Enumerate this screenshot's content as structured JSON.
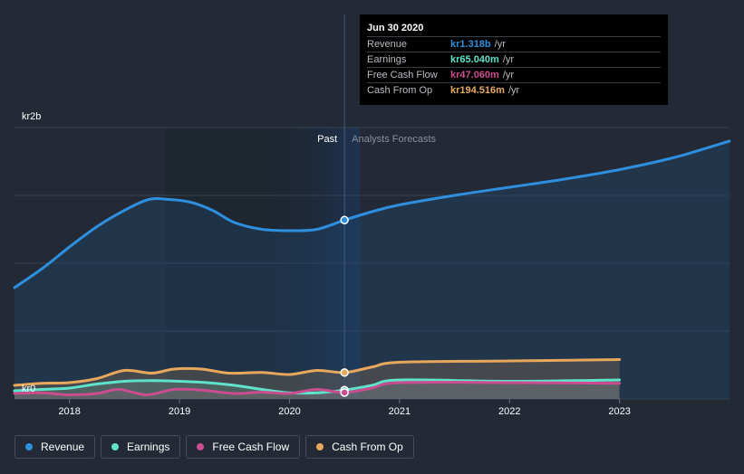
{
  "chart_data": {
    "type": "area",
    "y_axis": {
      "top_label": "kr2b",
      "bottom_label": "kr0",
      "ylim": [
        0,
        2.0
      ],
      "unit": "kr billions"
    },
    "x_axis": {
      "tick_labels": [
        "2018",
        "2019",
        "2020",
        "2021",
        "2022",
        "2023"
      ],
      "ticks": [
        2018,
        2019,
        2020,
        2021,
        2022,
        2023
      ],
      "xlim": [
        2017.5,
        2024.0
      ]
    },
    "divider": {
      "date": 2020.5,
      "past_label": "Past",
      "forecast_label": "Analysts Forecasts"
    },
    "series": [
      {
        "name": "Revenue",
        "color": "#2f8fdf",
        "points": [
          [
            2017.5,
            0.82
          ],
          [
            2017.75,
            0.96
          ],
          [
            2018.0,
            1.12
          ],
          [
            2018.25,
            1.27
          ],
          [
            2018.5,
            1.39
          ],
          [
            2018.72,
            1.47
          ],
          [
            2018.9,
            1.47
          ],
          [
            2019.1,
            1.45
          ],
          [
            2019.3,
            1.39
          ],
          [
            2019.5,
            1.3
          ],
          [
            2019.75,
            1.25
          ],
          [
            2020.0,
            1.24
          ],
          [
            2020.25,
            1.25
          ],
          [
            2020.5,
            1.318
          ],
          [
            2020.75,
            1.38
          ],
          [
            2021.0,
            1.43
          ],
          [
            2021.5,
            1.5
          ],
          [
            2022.0,
            1.56
          ],
          [
            2022.5,
            1.62
          ],
          [
            2023.0,
            1.69
          ],
          [
            2023.5,
            1.78
          ],
          [
            2024.0,
            1.9
          ]
        ]
      },
      {
        "name": "Earnings",
        "color": "#5fe3cb",
        "points": [
          [
            2017.5,
            0.06
          ],
          [
            2017.75,
            0.07
          ],
          [
            2018.0,
            0.08
          ],
          [
            2018.25,
            0.11
          ],
          [
            2018.5,
            0.13
          ],
          [
            2018.75,
            0.135
          ],
          [
            2019.0,
            0.13
          ],
          [
            2019.25,
            0.12
          ],
          [
            2019.5,
            0.1
          ],
          [
            2019.75,
            0.07
          ],
          [
            2020.0,
            0.045
          ],
          [
            2020.25,
            0.045
          ],
          [
            2020.5,
            0.065
          ],
          [
            2020.75,
            0.1
          ],
          [
            2021.0,
            0.14
          ],
          [
            2022.0,
            0.13
          ],
          [
            2023.0,
            0.14
          ]
        ]
      },
      {
        "name": "Free Cash Flow",
        "color": "#c94d8f",
        "points": [
          [
            2017.5,
            0.04
          ],
          [
            2017.75,
            0.045
          ],
          [
            2018.0,
            0.03
          ],
          [
            2018.25,
            0.04
          ],
          [
            2018.45,
            0.07
          ],
          [
            2018.7,
            0.03
          ],
          [
            2018.95,
            0.07
          ],
          [
            2019.2,
            0.065
          ],
          [
            2019.5,
            0.04
          ],
          [
            2019.75,
            0.05
          ],
          [
            2020.0,
            0.04
          ],
          [
            2020.25,
            0.07
          ],
          [
            2020.5,
            0.047
          ],
          [
            2020.75,
            0.08
          ],
          [
            2021.0,
            0.12
          ],
          [
            2022.0,
            0.12
          ],
          [
            2023.0,
            0.115
          ]
        ]
      },
      {
        "name": "Cash From Op",
        "color": "#e8a85c",
        "points": [
          [
            2017.5,
            0.1
          ],
          [
            2017.75,
            0.115
          ],
          [
            2018.0,
            0.12
          ],
          [
            2018.25,
            0.15
          ],
          [
            2018.5,
            0.21
          ],
          [
            2018.75,
            0.19
          ],
          [
            2018.95,
            0.22
          ],
          [
            2019.2,
            0.22
          ],
          [
            2019.45,
            0.19
          ],
          [
            2019.75,
            0.195
          ],
          [
            2020.0,
            0.18
          ],
          [
            2020.25,
            0.21
          ],
          [
            2020.5,
            0.1945
          ],
          [
            2020.75,
            0.235
          ],
          [
            2021.0,
            0.27
          ],
          [
            2022.0,
            0.28
          ],
          [
            2023.0,
            0.29
          ]
        ]
      }
    ],
    "highlight_point": {
      "x": 2020.5,
      "revenue": 1.318,
      "earnings": 0.065,
      "free_cash_flow": 0.047,
      "cash_from_op": 0.1945
    }
  },
  "tooltip": {
    "date": "Jun 30 2020",
    "rows": [
      {
        "label": "Revenue",
        "value": "kr1.318b",
        "unit": "/yr",
        "color": "#2f8fdf"
      },
      {
        "label": "Earnings",
        "value": "kr65.040m",
        "unit": "/yr",
        "color": "#5fe3cb"
      },
      {
        "label": "Free Cash Flow",
        "value": "kr47.060m",
        "unit": "/yr",
        "color": "#c94d8f"
      },
      {
        "label": "Cash From Op",
        "value": "kr194.516m",
        "unit": "/yr",
        "color": "#e8a85c"
      }
    ]
  },
  "legend": [
    {
      "label": "Revenue",
      "color": "#2f8fdf"
    },
    {
      "label": "Earnings",
      "color": "#5fe3cb"
    },
    {
      "label": "Free Cash Flow",
      "color": "#c94d8f"
    },
    {
      "label": "Cash From Op",
      "color": "#e8a85c"
    }
  ]
}
